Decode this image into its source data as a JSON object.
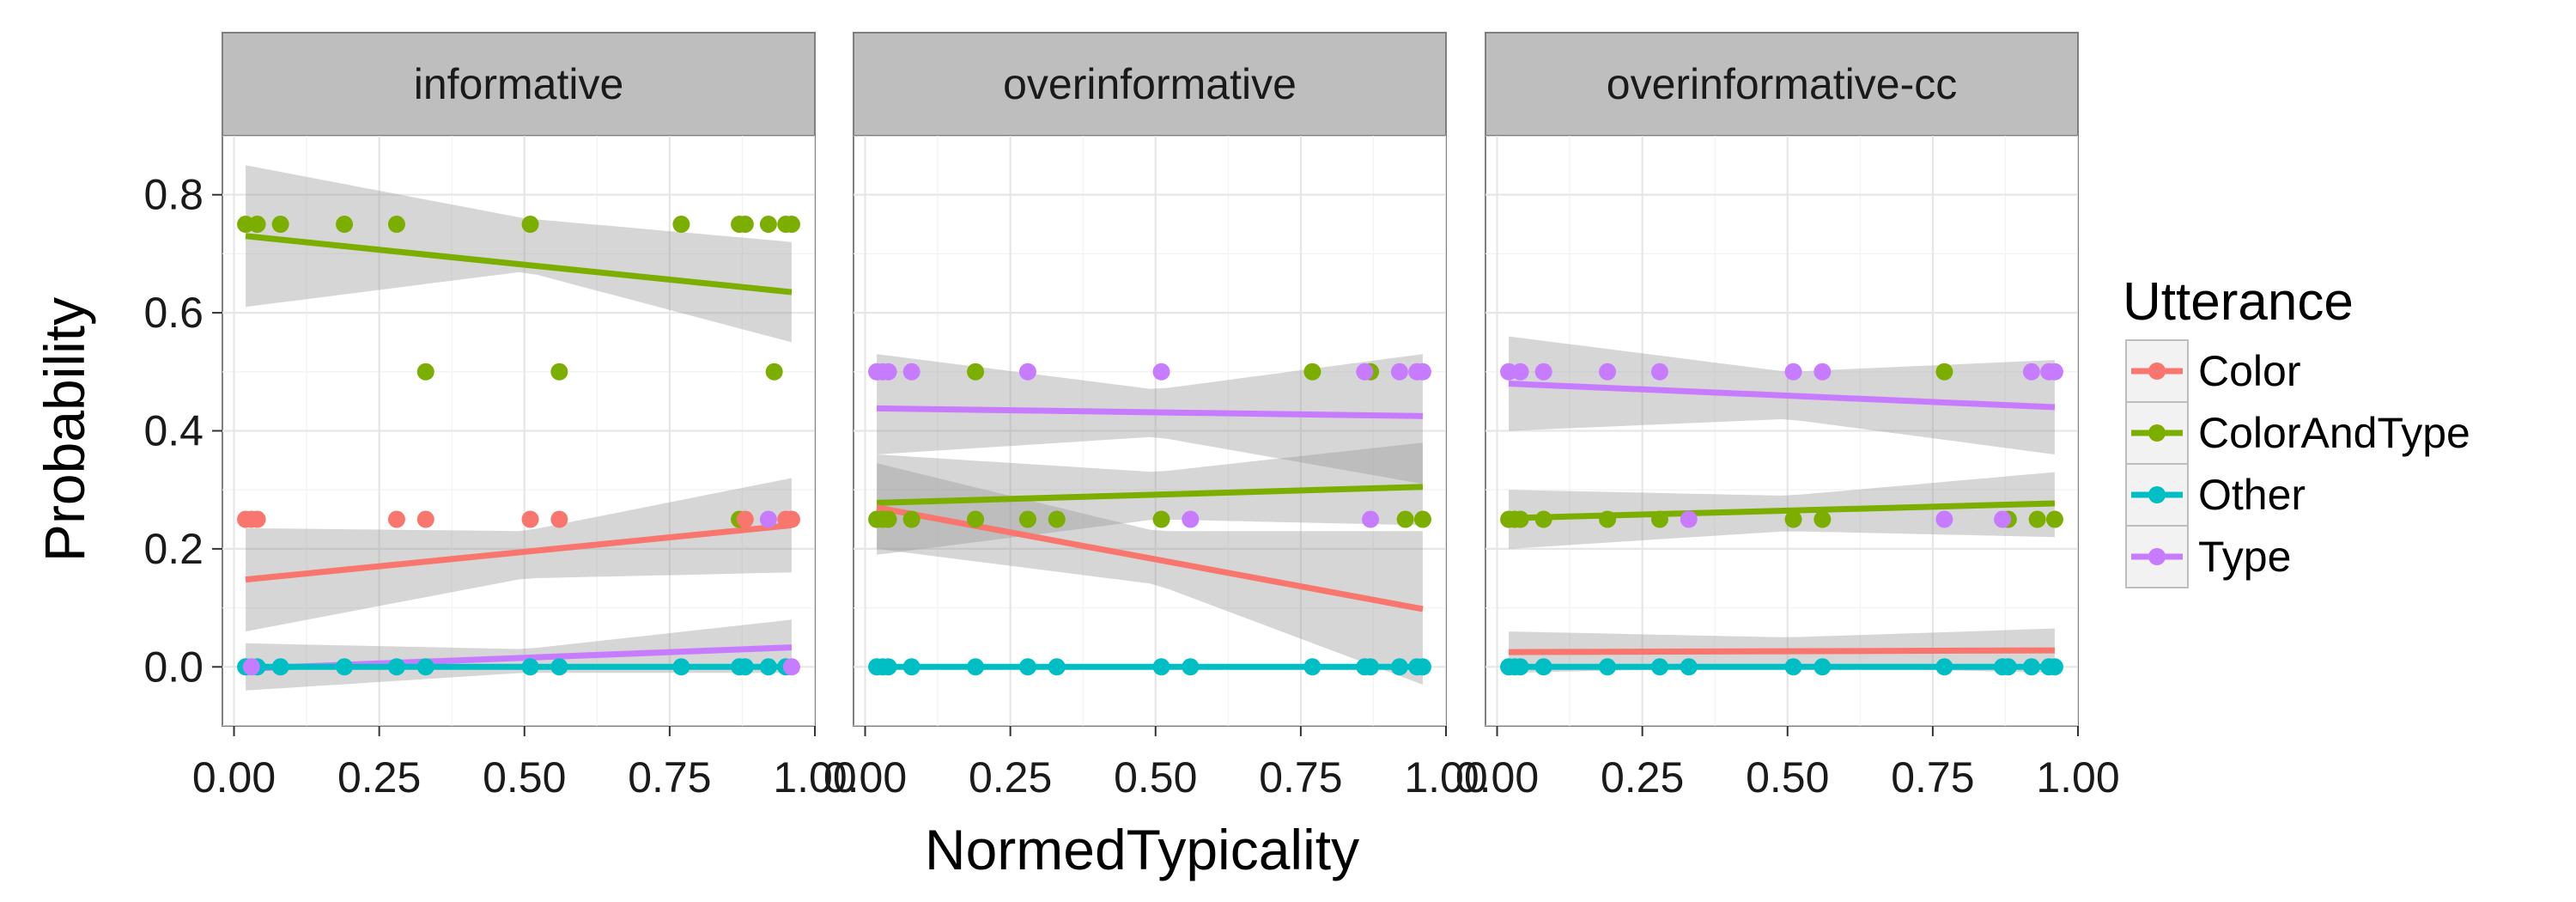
{
  "colors": {
    "Color": "#F8766D",
    "ColorAndType": "#7CAE00",
    "Other": "#00BFC4",
    "Type": "#C77CFF",
    "band": "#999999",
    "strip": "#bebebe"
  },
  "chart_data": {
    "type": "scatter",
    "xlabel": "NormedTypicality",
    "ylabel": "Probability",
    "xlim": [
      -0.02,
      1.0
    ],
    "ylim": [
      -0.1,
      0.9
    ],
    "x_ticks": [
      0.0,
      0.25,
      0.5,
      0.75,
      1.0
    ],
    "x_tick_labels": [
      "0.00",
      "0.25",
      "0.50",
      "0.75",
      "1.00"
    ],
    "y_ticks": [
      0.0,
      0.2,
      0.4,
      0.6,
      0.8
    ],
    "y_tick_labels": [
      "0.0",
      "0.2",
      "0.4",
      "0.6",
      "0.8"
    ],
    "grid": true,
    "legend": {
      "title": "Utterance",
      "position": "right",
      "items": [
        "Color",
        "ColorAndType",
        "Other",
        "Type"
      ]
    },
    "panels": [
      {
        "name": "informative",
        "points": {
          "ColorAndType": [
            [
              0.02,
              0.75
            ],
            [
              0.04,
              0.75
            ],
            [
              0.08,
              0.75
            ],
            [
              0.19,
              0.75
            ],
            [
              0.28,
              0.75
            ],
            [
              0.51,
              0.75
            ],
            [
              0.77,
              0.75
            ],
            [
              0.87,
              0.75
            ],
            [
              0.88,
              0.75
            ],
            [
              0.92,
              0.75
            ],
            [
              0.95,
              0.75
            ],
            [
              0.96,
              0.75
            ],
            [
              0.33,
              0.5
            ],
            [
              0.56,
              0.5
            ],
            [
              0.93,
              0.5
            ],
            [
              0.87,
              0.25
            ]
          ],
          "Color": [
            [
              0.02,
              0.25
            ],
            [
              0.03,
              0.25
            ],
            [
              0.04,
              0.25
            ],
            [
              0.28,
              0.25
            ],
            [
              0.33,
              0.25
            ],
            [
              0.51,
              0.25
            ],
            [
              0.56,
              0.25
            ],
            [
              0.88,
              0.25
            ],
            [
              0.95,
              0.25
            ],
            [
              0.96,
              0.25
            ]
          ],
          "Other": [
            [
              0.02,
              0.0
            ],
            [
              0.04,
              0.0
            ],
            [
              0.08,
              0.0
            ],
            [
              0.19,
              0.0
            ],
            [
              0.28,
              0.0
            ],
            [
              0.33,
              0.0
            ],
            [
              0.51,
              0.0
            ],
            [
              0.56,
              0.0
            ],
            [
              0.77,
              0.0
            ],
            [
              0.87,
              0.0
            ],
            [
              0.88,
              0.0
            ],
            [
              0.92,
              0.0
            ],
            [
              0.95,
              0.0
            ]
          ],
          "Type": [
            [
              0.03,
              0.0
            ],
            [
              0.96,
              0.0
            ],
            [
              0.92,
              0.25
            ]
          ]
        },
        "fits": [
          {
            "series": "ColorAndType",
            "x0": 0.02,
            "y0": 0.73,
            "x1": 0.96,
            "y1": 0.635,
            "band_x": [
              0.02,
              0.5,
              0.96
            ],
            "band_lo": [
              0.61,
              0.67,
              0.55
            ],
            "band_hi": [
              0.85,
              0.76,
              0.72
            ]
          },
          {
            "series": "Color",
            "x0": 0.02,
            "y0": 0.148,
            "x1": 0.96,
            "y1": 0.24,
            "band_x": [
              0.02,
              0.5,
              0.96
            ],
            "band_lo": [
              0.06,
              0.15,
              0.16
            ],
            "band_hi": [
              0.235,
              0.23,
              0.32
            ]
          },
          {
            "series": "Type",
            "x0": 0.02,
            "y0": -0.003,
            "x1": 0.96,
            "y1": 0.033,
            "band_x": [
              0.02,
              0.5,
              0.96
            ],
            "band_lo": [
              -0.04,
              -0.01,
              -0.01
            ],
            "band_hi": [
              0.04,
              0.03,
              0.08
            ]
          },
          {
            "series": "Other",
            "x0": 0.02,
            "y0": 0.0,
            "x1": 0.96,
            "y1": 0.0,
            "band_x": [
              0.02,
              0.96
            ],
            "band_lo": [
              0.0,
              0.0
            ],
            "band_hi": [
              0.0,
              0.0
            ]
          }
        ]
      },
      {
        "name": "overinformative",
        "points": {
          "Type": [
            [
              0.02,
              0.5
            ],
            [
              0.03,
              0.5
            ],
            [
              0.04,
              0.5
            ],
            [
              0.08,
              0.5
            ],
            [
              0.28,
              0.5
            ],
            [
              0.51,
              0.5
            ],
            [
              0.86,
              0.5
            ],
            [
              0.92,
              0.5
            ],
            [
              0.95,
              0.5
            ],
            [
              0.96,
              0.5
            ],
            [
              0.56,
              0.25
            ],
            [
              0.87,
              0.25
            ]
          ],
          "ColorAndType": [
            [
              0.19,
              0.5
            ],
            [
              0.77,
              0.5
            ],
            [
              0.87,
              0.5
            ],
            [
              0.02,
              0.25
            ],
            [
              0.03,
              0.25
            ],
            [
              0.04,
              0.25
            ],
            [
              0.08,
              0.25
            ],
            [
              0.19,
              0.25
            ],
            [
              0.28,
              0.25
            ],
            [
              0.33,
              0.25
            ],
            [
              0.51,
              0.25
            ],
            [
              0.93,
              0.25
            ],
            [
              0.96,
              0.25
            ]
          ],
          "Color": [],
          "Other": [
            [
              0.02,
              0.0
            ],
            [
              0.03,
              0.0
            ],
            [
              0.04,
              0.0
            ],
            [
              0.08,
              0.0
            ],
            [
              0.19,
              0.0
            ],
            [
              0.28,
              0.0
            ],
            [
              0.33,
              0.0
            ],
            [
              0.51,
              0.0
            ],
            [
              0.56,
              0.0
            ],
            [
              0.77,
              0.0
            ],
            [
              0.86,
              0.0
            ],
            [
              0.87,
              0.0
            ],
            [
              0.92,
              0.0
            ],
            [
              0.95,
              0.0
            ],
            [
              0.96,
              0.0
            ]
          ]
        },
        "fits": [
          {
            "series": "Type",
            "x0": 0.02,
            "y0": 0.438,
            "x1": 0.96,
            "y1": 0.425,
            "band_x": [
              0.02,
              0.5,
              0.96
            ],
            "band_lo": [
              0.36,
              0.39,
              0.31
            ],
            "band_hi": [
              0.53,
              0.47,
              0.53
            ]
          },
          {
            "series": "ColorAndType",
            "x0": 0.02,
            "y0": 0.278,
            "x1": 0.96,
            "y1": 0.305,
            "band_x": [
              0.02,
              0.5,
              0.96
            ],
            "band_lo": [
              0.19,
              0.25,
              0.24
            ],
            "band_hi": [
              0.36,
              0.33,
              0.38
            ]
          },
          {
            "series": "Color",
            "x0": 0.02,
            "y0": 0.27,
            "x1": 0.96,
            "y1": 0.098,
            "band_x": [
              0.02,
              0.5,
              0.96
            ],
            "band_lo": [
              0.2,
              0.14,
              -0.03
            ],
            "band_hi": [
              0.345,
              0.23,
              0.23
            ]
          },
          {
            "series": "Other",
            "x0": 0.02,
            "y0": 0.0,
            "x1": 0.96,
            "y1": 0.0,
            "band_x": [
              0.02,
              0.96
            ],
            "band_lo": [
              0.0,
              0.0
            ],
            "band_hi": [
              0.0,
              0.0
            ]
          }
        ]
      },
      {
        "name": "overinformative-cc",
        "points": {
          "Type": [
            [
              0.02,
              0.5
            ],
            [
              0.04,
              0.5
            ],
            [
              0.08,
              0.5
            ],
            [
              0.19,
              0.5
            ],
            [
              0.28,
              0.5
            ],
            [
              0.51,
              0.5
            ],
            [
              0.56,
              0.5
            ],
            [
              0.92,
              0.5
            ],
            [
              0.95,
              0.5
            ],
            [
              0.96,
              0.5
            ],
            [
              0.33,
              0.25
            ],
            [
              0.77,
              0.25
            ],
            [
              0.87,
              0.25
            ]
          ],
          "ColorAndType": [
            [
              0.77,
              0.5
            ],
            [
              0.02,
              0.25
            ],
            [
              0.03,
              0.25
            ],
            [
              0.04,
              0.25
            ],
            [
              0.08,
              0.25
            ],
            [
              0.19,
              0.25
            ],
            [
              0.28,
              0.25
            ],
            [
              0.51,
              0.25
            ],
            [
              0.56,
              0.25
            ],
            [
              0.88,
              0.25
            ],
            [
              0.93,
              0.25
            ],
            [
              0.96,
              0.25
            ]
          ],
          "Color": [],
          "Other": [
            [
              0.02,
              0.0
            ],
            [
              0.03,
              0.0
            ],
            [
              0.04,
              0.0
            ],
            [
              0.08,
              0.0
            ],
            [
              0.19,
              0.0
            ],
            [
              0.28,
              0.0
            ],
            [
              0.33,
              0.0
            ],
            [
              0.51,
              0.0
            ],
            [
              0.56,
              0.0
            ],
            [
              0.77,
              0.0
            ],
            [
              0.87,
              0.0
            ],
            [
              0.88,
              0.0
            ],
            [
              0.92,
              0.0
            ],
            [
              0.95,
              0.0
            ],
            [
              0.96,
              0.0
            ]
          ]
        },
        "fits": [
          {
            "series": "Type",
            "x0": 0.02,
            "y0": 0.48,
            "x1": 0.96,
            "y1": 0.44,
            "band_x": [
              0.02,
              0.5,
              0.96
            ],
            "band_lo": [
              0.4,
              0.42,
              0.36
            ],
            "band_hi": [
              0.56,
              0.5,
              0.52
            ]
          },
          {
            "series": "ColorAndType",
            "x0": 0.02,
            "y0": 0.252,
            "x1": 0.96,
            "y1": 0.277,
            "band_x": [
              0.02,
              0.5,
              0.96
            ],
            "band_lo": [
              0.2,
              0.23,
              0.22
            ],
            "band_hi": [
              0.3,
              0.29,
              0.33
            ]
          },
          {
            "series": "Color",
            "x0": 0.02,
            "y0": 0.025,
            "x1": 0.96,
            "y1": 0.028,
            "band_x": [
              0.02,
              0.5,
              0.96
            ],
            "band_lo": [
              -0.01,
              0.0,
              -0.01
            ],
            "band_hi": [
              0.06,
              0.05,
              0.065
            ]
          },
          {
            "series": "Other",
            "x0": 0.02,
            "y0": 0.0,
            "x1": 0.96,
            "y1": 0.0,
            "band_x": [
              0.02,
              0.96
            ],
            "band_lo": [
              0.0,
              0.0
            ],
            "band_hi": [
              0.0,
              0.0
            ]
          }
        ]
      }
    ]
  }
}
